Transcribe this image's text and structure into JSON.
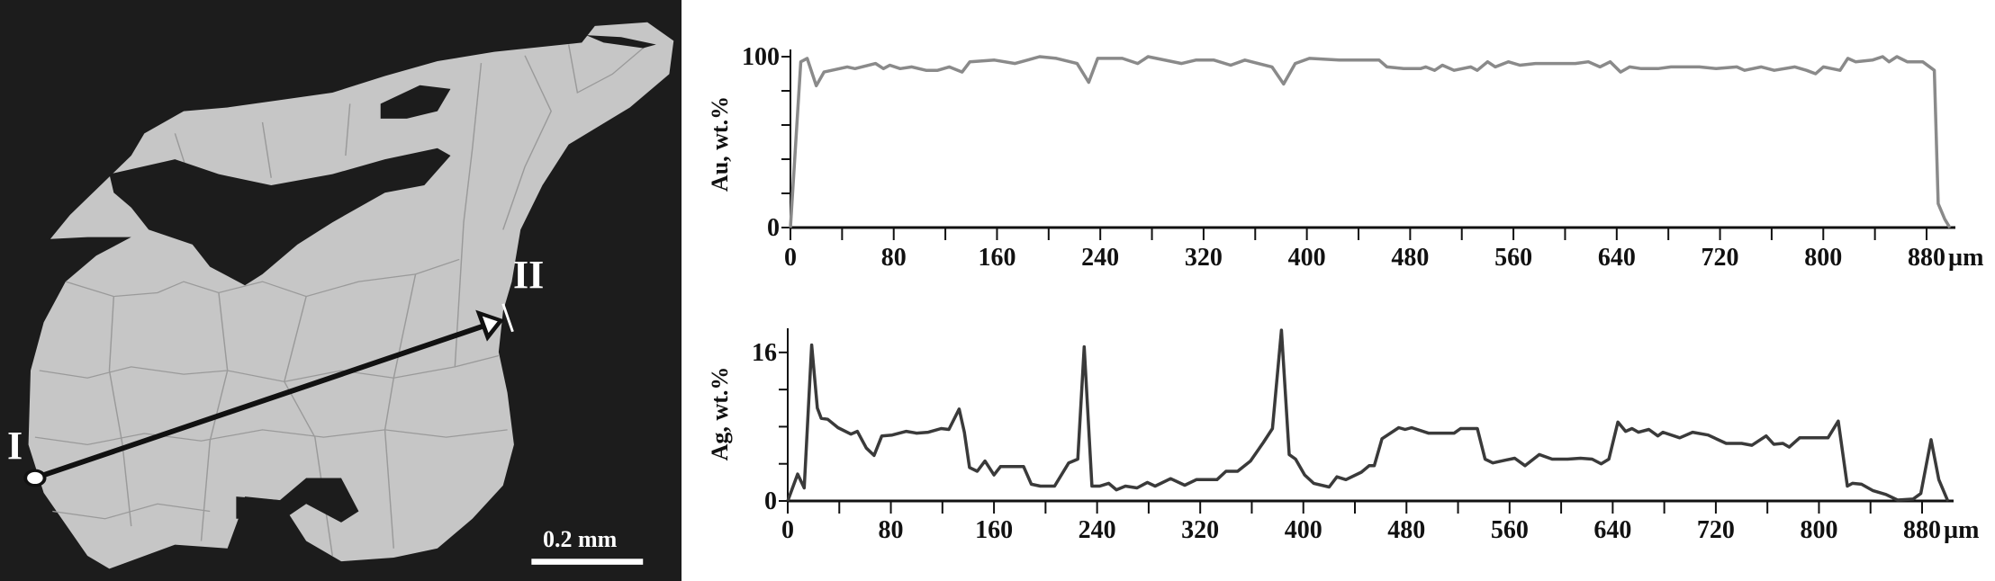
{
  "photo": {
    "start_label": "I",
    "end_label": "II",
    "scale_bar_label": "0.2 mm",
    "background_color": "#1c1c1c",
    "grain_color": "#c8c8c8"
  },
  "chart_data": [
    {
      "type": "line",
      "ylabel": "Au, wt.%",
      "xlabel": "",
      "x_unit": "µm",
      "xlim": [
        0,
        900
      ],
      "ylim": [
        0,
        100
      ],
      "x_ticks": [
        0,
        80,
        160,
        240,
        320,
        400,
        480,
        560,
        640,
        720,
        800,
        880
      ],
      "x_tick_labels": [
        "0",
        "80",
        "160",
        "240",
        "320",
        "400",
        "480",
        "560",
        "640",
        "720",
        "800",
        "880"
      ],
      "y_ticks": [
        0,
        20,
        40,
        60,
        80,
        100
      ],
      "y_tick_labels": [
        "0",
        "",
        "",
        "",
        "",
        "100"
      ],
      "grid": false,
      "color": "#8a8a8a",
      "series": [
        {
          "x": [
            0,
            8,
            13,
            20,
            26,
            44,
            50,
            66,
            72,
            77,
            85,
            94,
            105,
            114,
            123,
            133,
            139,
            158,
            174,
            193,
            206,
            222,
            231,
            238,
            257,
            269,
            277,
            303,
            314,
            328,
            341,
            352,
            373,
            382,
            391,
            402,
            425,
            456,
            462,
            475,
            488,
            492,
            499,
            505,
            514,
            527,
            532,
            540,
            546,
            556,
            565,
            577,
            608,
            618,
            627,
            635,
            643,
            650,
            659,
            672,
            682,
            704,
            717,
            733,
            739,
            752,
            762,
            778,
            787,
            794,
            800,
            813,
            819,
            825,
            838,
            846,
            851,
            857,
            865,
            877,
            886,
            889,
            894,
            898
          ],
          "y": [
            0,
            97,
            99,
            83,
            91,
            94,
            93,
            96,
            93,
            95,
            93,
            94,
            92,
            92,
            94,
            91,
            97,
            98,
            96,
            100,
            99,
            96,
            85,
            99,
            99,
            96,
            100,
            96,
            98,
            98,
            95,
            98,
            94,
            84,
            96,
            99,
            98,
            98,
            94,
            93,
            93,
            94,
            92,
            95,
            92,
            94,
            92,
            97,
            94,
            97,
            95,
            96,
            96,
            97,
            94,
            97,
            91,
            94,
            93,
            93,
            94,
            94,
            93,
            94,
            92,
            94,
            92,
            94,
            92,
            90,
            94,
            92,
            99,
            97,
            98,
            100,
            97,
            100,
            97,
            97,
            92,
            14,
            5,
            0
          ]
        }
      ]
    },
    {
      "type": "line",
      "ylabel": "Ag, wt.%",
      "xlabel": "",
      "x_unit": "µm",
      "xlim": [
        0,
        900
      ],
      "ylim": [
        0,
        18.6
      ],
      "x_ticks": [
        0,
        80,
        160,
        240,
        320,
        400,
        480,
        560,
        640,
        720,
        800,
        880
      ],
      "x_tick_labels": [
        "0",
        "80",
        "160",
        "240",
        "320",
        "400",
        "480",
        "560",
        "640",
        "720",
        "800",
        "880"
      ],
      "y_ticks": [
        0,
        4,
        8,
        12,
        16
      ],
      "y_tick_labels": [
        "0",
        "",
        "",
        "",
        "16"
      ],
      "grid": false,
      "color": "#3a3a3a",
      "series": [
        {
          "x": [
            0,
            7.7,
            12.8,
            18.6,
            23,
            26,
            31,
            39,
            49,
            54,
            61,
            67,
            73,
            81,
            92,
            100,
            109,
            119,
            125,
            133,
            137,
            141,
            147,
            153,
            160,
            165,
            183,
            189,
            196,
            207,
            218,
            225,
            230,
            236,
            242,
            249,
            255,
            262,
            271,
            279,
            285,
            297,
            308,
            317,
            333,
            340,
            349,
            359,
            369,
            376,
            383,
            389,
            394,
            401,
            408,
            420,
            426,
            433,
            445,
            451,
            455,
            461,
            474,
            479,
            484,
            497,
            517,
            522,
            532,
            535,
            541,
            547,
            557,
            564,
            572,
            583,
            593,
            605,
            615,
            624,
            631,
            637,
            644,
            650,
            655,
            660,
            668,
            675,
            679,
            692,
            702,
            714,
            728,
            740,
            748,
            759,
            765,
            772,
            777,
            785,
            807,
            815,
            822,
            826,
            833,
            842,
            852,
            861,
            873,
            879,
            887,
            893,
            900
          ],
          "y": [
            0,
            2.9,
            1.4,
            16.8,
            10,
            8.9,
            8.8,
            7.9,
            7.2,
            7.5,
            5.7,
            4.9,
            7,
            7.1,
            7.5,
            7.3,
            7.4,
            7.8,
            7.7,
            9.9,
            7.4,
            3.6,
            3.2,
            4.3,
            2.8,
            3.7,
            3.7,
            1.8,
            1.6,
            1.6,
            4.1,
            4.5,
            16.6,
            1.6,
            1.6,
            1.9,
            1.2,
            1.6,
            1.4,
            2,
            1.6,
            2.4,
            1.7,
            2.3,
            2.3,
            3.2,
            3.2,
            4.3,
            6.3,
            7.8,
            18.4,
            5,
            4.5,
            2.8,
            1.9,
            1.5,
            2.6,
            2.3,
            3.1,
            3.8,
            3.8,
            6.7,
            7.9,
            7.7,
            7.9,
            7.3,
            7.3,
            7.8,
            7.8,
            7.8,
            4.5,
            4.1,
            4.4,
            4.6,
            3.8,
            5,
            4.5,
            4.5,
            4.6,
            4.5,
            4,
            4.5,
            8.5,
            7.5,
            7.8,
            7.4,
            7.7,
            7,
            7.4,
            6.8,
            7.4,
            7.1,
            6.2,
            6.2,
            6,
            7,
            6.1,
            6.2,
            5.8,
            6.8,
            6.8,
            8.6,
            1.6,
            1.9,
            1.8,
            1.1,
            0.7,
            0.1,
            0.2,
            0.8,
            6.6,
            2.3,
            0
          ]
        }
      ]
    }
  ]
}
